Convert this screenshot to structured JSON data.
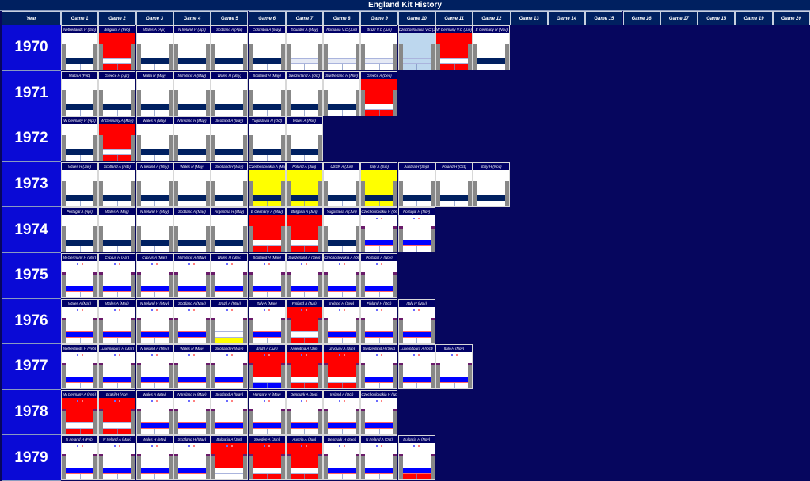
{
  "title": "England Kit History",
  "year_header": "Year",
  "game_headers": [
    "Game 1",
    "Game 2",
    "Game 3",
    "Game 4",
    "Game 5",
    "Game 6",
    "Game 7",
    "Game 8",
    "Game 9",
    "Game 10",
    "Game 11",
    "Game 12",
    "Game 13",
    "Game 14",
    "Game 15",
    "Game 16",
    "Game 17",
    "Game 18",
    "Game 19",
    "Game 20"
  ],
  "kits": {
    "A": {
      "shirt": "#ffffff",
      "shorts": "#002060",
      "socks": "#ffffff"
    },
    "R": {
      "shirt": "#ff0000",
      "shorts": "#ffffff",
      "socks": "#ff0000"
    },
    "W": {
      "shirt": "#ffffff",
      "shorts": "#e6eaf5",
      "socks": "#ffffff"
    },
    "L": {
      "shirt": "#bdd7ee",
      "shorts": "#bdd7ee",
      "socks": "#bdd7ee"
    },
    "Y": {
      "shirt": "#ffff00",
      "shorts": "#002060",
      "socks": "#ffff00"
    },
    "B": {
      "shirt": "#ffffff",
      "shorts": "#0000ff",
      "socks": "#ffffff"
    },
    "RB": {
      "shirt": "#ff0000",
      "shorts": "#ffffff",
      "socks": "#0000ff"
    },
    "RW": {
      "shirt": "#ff0000",
      "shorts": "#ffffff",
      "socks": "#ffffff"
    },
    "BR": {
      "shirt": "#ffffff",
      "shorts": "#0000ff",
      "socks": "#ff0000"
    },
    "WY": {
      "shirt": "#ffffff",
      "shorts": "#ffffff",
      "socks": "#ffff00"
    }
  },
  "years": [
    {
      "year": "1970",
      "games": [
        {
          "label": "Netherlands H (Jan)",
          "kit": "A"
        },
        {
          "label": "Belgium A (Feb)",
          "kit": "R"
        },
        {
          "label": "Wales A (Apr)",
          "kit": "A"
        },
        {
          "label": "N Ireland H (Apr)",
          "kit": "A"
        },
        {
          "label": "Scotland A (Apr)",
          "kit": "A"
        },
        {
          "label": "Colombia A (May)",
          "kit": "A"
        },
        {
          "label": "Ecuador A (May)",
          "kit": "W"
        },
        {
          "label": "Romania V.C (Jun)",
          "kit": "W"
        },
        {
          "label": "Brazil V.C (Jun)",
          "kit": "W"
        },
        {
          "label": "Czechoslovakia V.C (Jun)",
          "kit": "L"
        },
        {
          "label": "W Germany V.C (Jun)",
          "kit": "R"
        },
        {
          "label": "E Germany H (Nov)",
          "kit": "A"
        }
      ]
    },
    {
      "year": "1971",
      "games": [
        {
          "label": "Malta A (Feb)",
          "kit": "A"
        },
        {
          "label": "Greece H (Apr)",
          "kit": "A"
        },
        {
          "label": "Malta H (May)",
          "kit": "A"
        },
        {
          "label": "N Ireland A (May)",
          "kit": "A"
        },
        {
          "label": "Wales H (May)",
          "kit": "A"
        },
        {
          "label": "Scotland H (May)",
          "kit": "A"
        },
        {
          "label": "Switzerland A (Oct)",
          "kit": "A"
        },
        {
          "label": "Switzerland H (Nov)",
          "kit": "A"
        },
        {
          "label": "Greece A (Dec)",
          "kit": "R"
        }
      ]
    },
    {
      "year": "1972",
      "games": [
        {
          "label": "W Germany H (Apr)",
          "kit": "A"
        },
        {
          "label": "W Germany A (May)",
          "kit": "R"
        },
        {
          "label": "Wales A (May)",
          "kit": "A"
        },
        {
          "label": "N Ireland H (May)",
          "kit": "A"
        },
        {
          "label": "Scotland A (May)",
          "kit": "A"
        },
        {
          "label": "Yugoslavia H (Oct)",
          "kit": "A"
        },
        {
          "label": "Wales A (Nov)",
          "kit": "A"
        }
      ]
    },
    {
      "year": "1973",
      "games": [
        {
          "label": "Wales H (Jan)",
          "kit": "A"
        },
        {
          "label": "Scotland A (Feb)",
          "kit": "A"
        },
        {
          "label": "N Ireland A (May)",
          "kit": "A"
        },
        {
          "label": "Wales H (May)",
          "kit": "A"
        },
        {
          "label": "Scotland H (May)",
          "kit": "A"
        },
        {
          "label": "Czechoslovakia A (May)",
          "kit": "Y"
        },
        {
          "label": "Poland A (Jun)",
          "kit": "Y"
        },
        {
          "label": "USSR A (Jun)",
          "kit": "A"
        },
        {
          "label": "Italy A (Jun)",
          "kit": "Y"
        },
        {
          "label": "Austria H (Sep)",
          "kit": "A"
        },
        {
          "label": "Poland H (Oct)",
          "kit": "A"
        },
        {
          "label": "Italy H (Nov)",
          "kit": "A"
        }
      ]
    },
    {
      "year": "1974",
      "games": [
        {
          "label": "Portugal A (Apr)",
          "kit": "A"
        },
        {
          "label": "Wales A (May)",
          "kit": "A"
        },
        {
          "label": "N Ireland H (May)",
          "kit": "A"
        },
        {
          "label": "Scotland A (May)",
          "kit": "A"
        },
        {
          "label": "Argentina H (May)",
          "kit": "A"
        },
        {
          "label": "E Germany A (May)",
          "kit": "R"
        },
        {
          "label": "Bulgaria A (Jun)",
          "kit": "R"
        },
        {
          "label": "Yugoslavia A (Jun)",
          "kit": "A"
        },
        {
          "label": "Czechoslovakia H (Oct)",
          "kit": "B"
        },
        {
          "label": "Portugal H (Nov)",
          "kit": "B"
        }
      ]
    },
    {
      "year": "1975",
      "games": [
        {
          "label": "W Germany H (Mar)",
          "kit": "B"
        },
        {
          "label": "Cyprus H (Apr)",
          "kit": "B"
        },
        {
          "label": "Cyprus A (May)",
          "kit": "B"
        },
        {
          "label": "N Ireland A (May)",
          "kit": "B"
        },
        {
          "label": "Wales H (May)",
          "kit": "B"
        },
        {
          "label": "Scotland H (May)",
          "kit": "B"
        },
        {
          "label": "Switzerland A (Sep)",
          "kit": "B"
        },
        {
          "label": "Czechoslovakia A (Oct)",
          "kit": "B"
        },
        {
          "label": "Portugal A (Nov)",
          "kit": "B"
        }
      ]
    },
    {
      "year": "1976",
      "games": [
        {
          "label": "Wales A (Mar)",
          "kit": "B"
        },
        {
          "label": "Wales A (May)",
          "kit": "B"
        },
        {
          "label": "N Ireland H (May)",
          "kit": "B"
        },
        {
          "label": "Scotland A (May)",
          "kit": "B"
        },
        {
          "label": "Brazil A (May)",
          "kit": "WY"
        },
        {
          "label": "Italy A (May)",
          "kit": "B"
        },
        {
          "label": "Finland A (Jun)",
          "kit": "R"
        },
        {
          "label": "Ireland H (Sep)",
          "kit": "B"
        },
        {
          "label": "Finland H (Oct)",
          "kit": "B"
        },
        {
          "label": "Italy H (Nov)",
          "kit": "B"
        }
      ]
    },
    {
      "year": "1977",
      "games": [
        {
          "label": "Netherlands H (Feb)",
          "kit": "B"
        },
        {
          "label": "Luxembourg H (Mar)",
          "kit": "B"
        },
        {
          "label": "N Ireland A (May)",
          "kit": "B"
        },
        {
          "label": "Wales H (May)",
          "kit": "B"
        },
        {
          "label": "Scotland H (May)",
          "kit": "B"
        },
        {
          "label": "Brazil A (Jun)",
          "kit": "RB"
        },
        {
          "label": "Argentina A (Jun)",
          "kit": "R"
        },
        {
          "label": "Uruguay A (Jun)",
          "kit": "R"
        },
        {
          "label": "Switzerland H (Sep)",
          "kit": "B"
        },
        {
          "label": "Luxembourg A (Oct)",
          "kit": "B"
        },
        {
          "label": "Italy H (Nov)",
          "kit": "B"
        }
      ]
    },
    {
      "year": "1978",
      "games": [
        {
          "label": "W Germany A (Feb)",
          "kit": "R"
        },
        {
          "label": "Brazil H (Apr)",
          "kit": "R"
        },
        {
          "label": "Wales A (May)",
          "kit": "B"
        },
        {
          "label": "N Ireland H (May)",
          "kit": "B"
        },
        {
          "label": "Scotland A (May)",
          "kit": "B"
        },
        {
          "label": "Hungary H (May)",
          "kit": "B"
        },
        {
          "label": "Denmark A (Sep)",
          "kit": "B"
        },
        {
          "label": "Ireland A (Oct)",
          "kit": "B"
        },
        {
          "label": "Czechoslovakia H (Nov)",
          "kit": "B"
        }
      ]
    },
    {
      "year": "1979",
      "games": [
        {
          "label": "N Ireland H (Feb)",
          "kit": "B"
        },
        {
          "label": "N Ireland A (May)",
          "kit": "B"
        },
        {
          "label": "Wales H (May)",
          "kit": "B"
        },
        {
          "label": "Scotland H (May)",
          "kit": "B"
        },
        {
          "label": "Bulgaria A (Jun)",
          "kit": "RW"
        },
        {
          "label": "Sweden A (Jun)",
          "kit": "R"
        },
        {
          "label": "Austria A (Jun)",
          "kit": "R"
        },
        {
          "label": "Denmark H (Sep)",
          "kit": "B"
        },
        {
          "label": "N Ireland A (Oct)",
          "kit": "B"
        },
        {
          "label": "Bulgaria H (Nov)",
          "kit": "BR"
        }
      ]
    }
  ]
}
